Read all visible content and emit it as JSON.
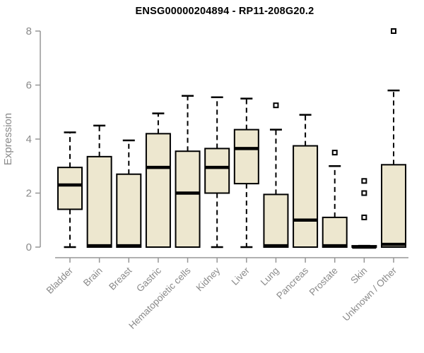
{
  "header": {
    "title": "ENSG00000204894 - RP11-208G20.2"
  },
  "chart_data": {
    "type": "boxplot",
    "title": "ENSG00000204894 - RP11-208G20.2",
    "xlabel": "",
    "ylabel": "Expression",
    "ylim": [
      0,
      8
    ],
    "yticks": [
      0,
      2,
      4,
      6,
      8
    ],
    "grid": false,
    "legend": "none",
    "categories": [
      "Bladder",
      "Brain",
      "Breast",
      "Gastric",
      "Hematopoietic cells",
      "Kidney",
      "Liver",
      "Lung",
      "Pancreas",
      "Prostate",
      "Skin",
      "Unknown / Other"
    ],
    "series": [
      {
        "category": "Bladder",
        "whisker_low": 0,
        "q1": 1.4,
        "median": 2.3,
        "q3": 2.95,
        "whisker_high": 4.25,
        "outliers": []
      },
      {
        "category": "Brain",
        "whisker_low": 0,
        "q1": 0,
        "median": 0.05,
        "q3": 3.35,
        "whisker_high": 4.5,
        "outliers": []
      },
      {
        "category": "Breast",
        "whisker_low": 0,
        "q1": 0,
        "median": 0.05,
        "q3": 2.7,
        "whisker_high": 3.95,
        "outliers": []
      },
      {
        "category": "Gastric",
        "whisker_low": 0,
        "q1": 0,
        "median": 2.95,
        "q3": 4.2,
        "whisker_high": 4.95,
        "outliers": []
      },
      {
        "category": "Hematopoietic cells",
        "whisker_low": 0,
        "q1": 0,
        "median": 2.0,
        "q3": 3.55,
        "whisker_high": 5.6,
        "outliers": []
      },
      {
        "category": "Kidney",
        "whisker_low": 0,
        "q1": 2.0,
        "median": 2.95,
        "q3": 3.65,
        "whisker_high": 5.55,
        "outliers": []
      },
      {
        "category": "Liver",
        "whisker_low": 0,
        "q1": 2.35,
        "median": 3.65,
        "q3": 4.35,
        "whisker_high": 5.5,
        "outliers": []
      },
      {
        "category": "Lung",
        "whisker_low": 0,
        "q1": 0,
        "median": 0.05,
        "q3": 1.95,
        "whisker_high": 4.35,
        "outliers": [
          5.25
        ]
      },
      {
        "category": "Pancreas",
        "whisker_low": 0,
        "q1": 0,
        "median": 1.0,
        "q3": 3.75,
        "whisker_high": 4.9,
        "outliers": []
      },
      {
        "category": "Prostate",
        "whisker_low": 0,
        "q1": 0,
        "median": 0.05,
        "q3": 1.1,
        "whisker_high": 3.0,
        "outliers": [
          3.5
        ]
      },
      {
        "category": "Skin",
        "whisker_low": 0,
        "q1": 0,
        "median": 0,
        "q3": 0.05,
        "whisker_high": 0.05,
        "outliers": [
          2.45,
          2.0,
          1.1
        ]
      },
      {
        "category": "Unknown / Other",
        "whisker_low": 0,
        "q1": 0,
        "median": 0.1,
        "q3": 3.05,
        "whisker_high": 5.8,
        "outliers": [
          8.0
        ]
      }
    ],
    "colors": {
      "box_fill": "#EDE7CF",
      "box_stroke": "#000000",
      "median": "#000000",
      "whisker": "#000000",
      "axis": "#969696",
      "axis_text": "#8A8A8A",
      "title": "#000000",
      "background": "#FFFFFF"
    }
  }
}
